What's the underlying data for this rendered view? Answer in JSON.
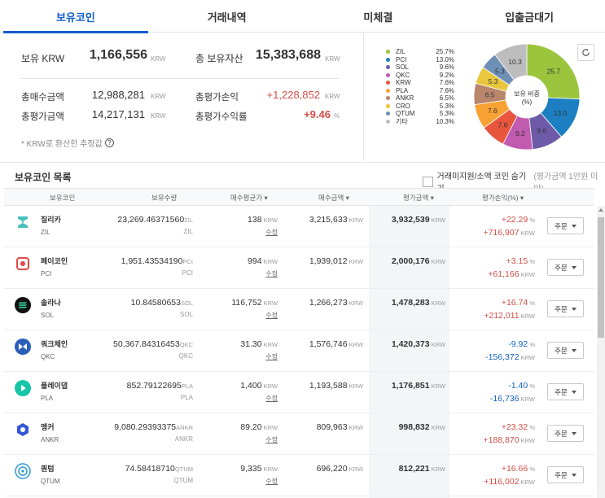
{
  "tabs": [
    "보유코인",
    "거래내역",
    "미체결",
    "입출금대기"
  ],
  "summary": {
    "krw_label": "보유 KRW",
    "krw_value": "1,166,556",
    "unit": "KRW",
    "total_assets_label": "총 보유자산",
    "total_assets_value": "15,383,688",
    "total_buy_label": "총매수금액",
    "total_buy_value": "12,988,281",
    "total_pl_label": "총평가손익",
    "total_pl_value": "+1,228,852",
    "total_eval_label": "총평가금액",
    "total_eval_value": "14,217,131",
    "total_rate_label": "총평가수익률",
    "total_rate_value": "+9.46",
    "pct": "%",
    "note": "* KRW로 환산한 추정값",
    "help_icon": "?"
  },
  "pie": {
    "center_label": "보유 비중",
    "center_unit": "(%)",
    "legend": [
      {
        "name": "ZIL",
        "value": "25.7%",
        "color": "#9bc53d"
      },
      {
        "name": "PCI",
        "value": "13.0%",
        "color": "#1b7fc1"
      },
      {
        "name": "SOL",
        "value": "9.6%",
        "color": "#6d5aa8"
      },
      {
        "name": "QKC",
        "value": "9.2%",
        "color": "#c15bb0"
      },
      {
        "name": "KRW",
        "value": "7.6%",
        "color": "#e8563e"
      },
      {
        "name": "PLA",
        "value": "7.6%",
        "color": "#f7a233"
      },
      {
        "name": "ANKR",
        "value": "6.5%",
        "color": "#b8866a"
      },
      {
        "name": "CRO",
        "value": "5.3%",
        "color": "#e9c73c"
      },
      {
        "name": "QTUM",
        "value": "5.3%",
        "color": "#6f90b6"
      },
      {
        "name": "기타",
        "value": "10.3%",
        "color": "#bdbdbd"
      }
    ],
    "slices": [
      {
        "label": "25.7",
        "value": 25.7,
        "color": "#9bc53d"
      },
      {
        "label": "13.0",
        "value": 13.0,
        "color": "#1b7fc1"
      },
      {
        "label": "9.6",
        "value": 9.6,
        "color": "#6d5aa8"
      },
      {
        "label": "9.2",
        "value": 9.2,
        "color": "#c15bb0"
      },
      {
        "label": "7.6",
        "value": 7.6,
        "color": "#e8563e"
      },
      {
        "label": "7.6",
        "value": 7.6,
        "color": "#f7a233"
      },
      {
        "label": "6.5",
        "value": 6.5,
        "color": "#b8866a"
      },
      {
        "label": "5.3",
        "value": 5.3,
        "color": "#e9c73c"
      },
      {
        "label": "5.3",
        "value": 5.3,
        "color": "#6f90b6"
      },
      {
        "label": "10.3",
        "value": 10.3,
        "color": "#bdbdbd"
      }
    ]
  },
  "list": {
    "title": "보유코인 목록",
    "hide_label": "거래미지원/소액 코인 숨기기",
    "hide_sub": "(평가금액 1만원 미만)",
    "headers": {
      "coin": "보유코인",
      "qty": "보유수량",
      "avg": "매수평균가 ▾",
      "buy": "매수금액 ▾",
      "eval": "평가금액 ▾",
      "pl": "평가손익(%) ▾"
    },
    "order_label": "주문",
    "modify_label": "수정",
    "rows": [
      {
        "name": "질리카",
        "sym": "ZIL",
        "qty": "23,269.46371560",
        "qty_unit": "ZIL",
        "avg": "138",
        "buy": "3,215,633",
        "eval": "3,932,539",
        "rate": "+22.29",
        "pl": "+716,907",
        "up": true
      },
      {
        "name": "페이코인",
        "sym": "PCI",
        "qty": "1,951.43534190",
        "qty_unit": "PCI",
        "avg": "994",
        "buy": "1,939,012",
        "eval": "2,000,176",
        "rate": "+3.15",
        "pl": "+61,166",
        "up": true
      },
      {
        "name": "솔라나",
        "sym": "SOL",
        "qty": "10.84580653",
        "qty_unit": "SOL",
        "avg": "116,752",
        "buy": "1,266,273",
        "eval": "1,478,283",
        "rate": "+16.74",
        "pl": "+212,011",
        "up": true
      },
      {
        "name": "쿼크체인",
        "sym": "QKC",
        "qty": "50,367.84316453",
        "qty_unit": "QKC",
        "avg": "31.30",
        "buy": "1,576,746",
        "eval": "1,420,373",
        "rate": "-9.92",
        "pl": "-156,372",
        "up": false
      },
      {
        "name": "플레이댑",
        "sym": "PLA",
        "qty": "852.79122695",
        "qty_unit": "PLA",
        "avg": "1,400",
        "buy": "1,193,588",
        "eval": "1,176,851",
        "rate": "-1.40",
        "pl": "-16,736",
        "up": false
      },
      {
        "name": "앵커",
        "sym": "ANKR",
        "qty": "9,080.29393375",
        "qty_unit": "ANKR",
        "avg": "89.20",
        "buy": "809,963",
        "eval": "998,832",
        "rate": "+23.32",
        "pl": "+188,870",
        "up": true
      },
      {
        "name": "퀀텀",
        "sym": "QTUM",
        "qty": "74.58418710",
        "qty_unit": "QTUM",
        "avg": "9,335",
        "buy": "696,220",
        "eval": "812,221",
        "rate": "+16.66",
        "pl": "+116,002",
        "up": true
      }
    ]
  }
}
